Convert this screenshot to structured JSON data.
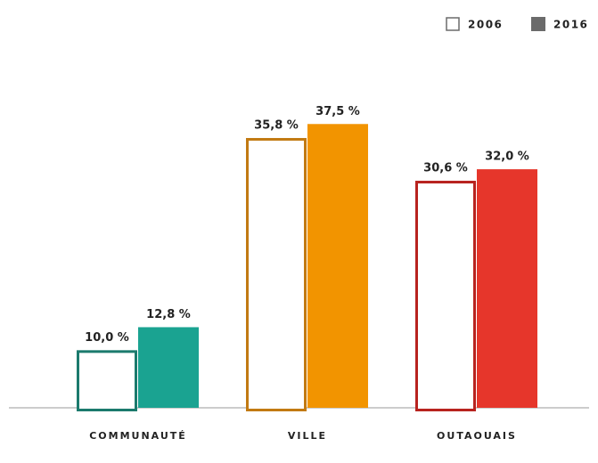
{
  "chart_data": {
    "type": "bar",
    "categories": [
      "COMMUNAUTÉ",
      "VILLE",
      "OUTAOUAIS"
    ],
    "series": [
      {
        "name": "2006",
        "style": "outline",
        "colors": [
          "#1b7a6d",
          "#c27a12",
          "#b8231f"
        ],
        "values": [
          10.0,
          35.8,
          30.6
        ],
        "value_labels": [
          "10,0 %",
          "35,8 %",
          "30,6 %"
        ]
      },
      {
        "name": "2016",
        "style": "filled",
        "colors": [
          "#1aa391",
          "#f29400",
          "#e6362b"
        ],
        "values": [
          12.8,
          37.5,
          32.0
        ],
        "value_labels": [
          "12,8 %",
          "37,5 %",
          "32,0 %"
        ]
      }
    ],
    "legend_color": "#6b6b6b",
    "legend": "top-right",
    "ylim": [
      3,
      45
    ]
  }
}
